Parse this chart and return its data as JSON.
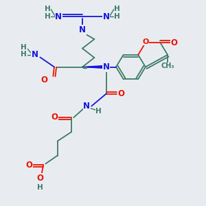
{
  "bg_color": "#e8ecf0",
  "C_col": "#3d7a65",
  "N_col": "#1414e0",
  "O_col": "#ee1100",
  "H_col": "#3d7a65",
  "lw": 1.3,
  "figsize": [
    3.0,
    3.0
  ],
  "dpi": 100,
  "xlim": [
    0.0,
    9.5
  ],
  "ylim": [
    0.0,
    10.0
  ]
}
